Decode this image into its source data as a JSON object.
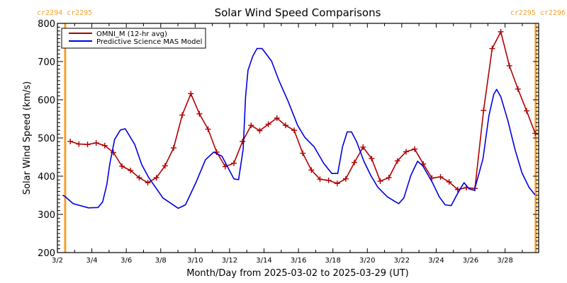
{
  "chart_data": {
    "type": "line",
    "title": "Solar Wind Speed Comparisons",
    "xlabel": "Month/Day from 2025-03-02 to 2025-03-29 (UT)",
    "ylabel": "Solar Wind Speed (km/s)",
    "x_unit": "days since 2025-03-02 00:00 UT",
    "xlim": [
      0,
      27.95
    ],
    "ylim": [
      200,
      800
    ],
    "y_ticks": [
      200,
      300,
      400,
      500,
      600,
      700,
      800
    ],
    "x_tick_labels": [
      {
        "day": 0,
        "label": "3/2"
      },
      {
        "day": 2,
        "label": "3/4"
      },
      {
        "day": 4,
        "label": "3/6"
      },
      {
        "day": 6,
        "label": "3/8"
      },
      {
        "day": 8,
        "label": "3/10"
      },
      {
        "day": 10,
        "label": "3/12"
      },
      {
        "day": 12,
        "label": "3/14"
      },
      {
        "day": 14,
        "label": "3/16"
      },
      {
        "day": 16,
        "label": "3/18"
      },
      {
        "day": 18,
        "label": "3/20"
      },
      {
        "day": 20,
        "label": "3/22"
      },
      {
        "day": 22,
        "label": "3/24"
      },
      {
        "day": 24,
        "label": "3/26"
      },
      {
        "day": 26,
        "label": "3/28"
      }
    ],
    "legend": {
      "position": "top-left",
      "boxed": true
    },
    "series": [
      {
        "name": "OMNI_M (12-hr avg)",
        "color": "#b00000",
        "marker": "plus",
        "x_start": 0.75,
        "x_step": 0.5,
        "values": [
          491,
          484,
          483,
          487,
          480,
          462,
          426,
          415,
          396,
          383,
          396,
          427,
          474,
          560,
          616,
          563,
          523,
          463,
          425,
          434,
          491,
          533,
          519,
          536,
          552,
          533,
          520,
          460,
          416,
          392,
          389,
          381,
          393,
          436,
          476,
          446,
          387,
          396,
          440,
          464,
          471,
          432,
          395,
          398,
          385,
          365,
          370,
          368,
          572,
          734,
          778,
          689,
          628,
          571,
          512
        ]
      },
      {
        "name": "Predictive Science MAS Model",
        "color": "#0000e0",
        "marker": "none",
        "x": [
          0.3,
          0.41,
          0.92,
          1.81,
          2.36,
          2.63,
          2.87,
          3.05,
          3.32,
          3.66,
          3.94,
          4.49,
          4.9,
          5.31,
          6.13,
          7.02,
          7.44,
          8.05,
          8.6,
          9.08,
          9.56,
          10.25,
          10.52,
          10.79,
          10.93,
          11.07,
          11.35,
          11.59,
          11.89,
          12.44,
          12.85,
          13.4,
          13.95,
          14.36,
          14.91,
          15.46,
          15.94,
          16.28,
          16.56,
          16.83,
          17.08,
          17.38,
          17.79,
          18.2,
          18.61,
          19.16,
          19.82,
          20.12,
          20.53,
          20.92,
          21.22,
          21.77,
          22.18,
          22.52,
          22.87,
          23.14,
          23.41,
          23.62,
          23.9,
          24.21,
          24.38,
          24.72,
          25.06,
          25.34,
          25.51,
          25.75,
          26.16,
          26.57,
          26.98,
          27.39,
          27.74
        ],
        "values": [
          350,
          348,
          328,
          317,
          318,
          333,
          378,
          434,
          496,
          521,
          524,
          483,
          430,
          396,
          343,
          316,
          325,
          384,
          443,
          463,
          452,
          393,
          391,
          471,
          608,
          677,
          714,
          734,
          734,
          701,
          652,
          596,
          533,
          502,
          477,
          434,
          407,
          407,
          477,
          516,
          516,
          490,
          440,
          402,
          371,
          346,
          328,
          343,
          402,
          439,
          427,
          384,
          346,
          325,
          323,
          346,
          368,
          383,
          367,
          363,
          390,
          446,
          558,
          614,
          627,
          608,
          546,
          471,
          409,
          371,
          351
        ]
      }
    ],
    "annotations": [
      {
        "type": "vertical-line",
        "x": 0.45,
        "color": "#f5a030",
        "label": "cr2294 cr2295",
        "label_side": "left"
      },
      {
        "type": "vertical-line",
        "x": 27.78,
        "color": "#f5a030",
        "label": "cr2295 cr2296",
        "label_side": "right"
      }
    ]
  }
}
